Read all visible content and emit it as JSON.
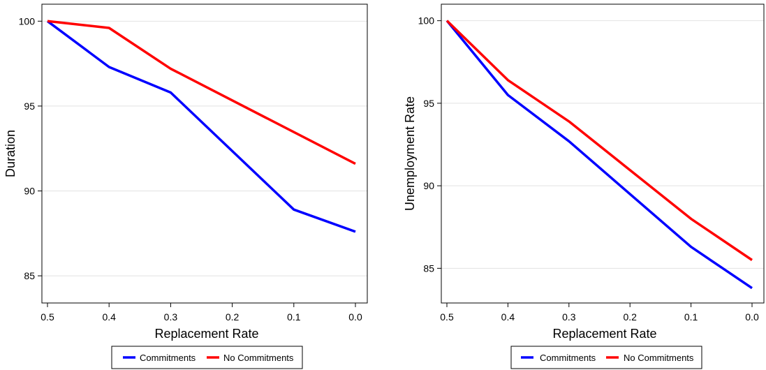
{
  "chart_data": [
    {
      "type": "line",
      "xlabel": "Replacement Rate",
      "ylabel": "Duration",
      "x": [
        0.5,
        0.4,
        0.3,
        0.2,
        0.1,
        0.0
      ],
      "x_tick_labels": [
        "0.5",
        "0.4",
        "0.3",
        "0.2",
        "0.1",
        "0.0"
      ],
      "x_reversed": true,
      "xlim": [
        0.5,
        0.0
      ],
      "ylim": [
        83.4,
        101.0
      ],
      "y_ticks": [
        85,
        90,
        95,
        100
      ],
      "y_tick_labels": [
        "85",
        "90",
        "95",
        "100"
      ],
      "grid": "horizontal",
      "legend_position": "bottom",
      "series": [
        {
          "name": "Commitments",
          "color": "#0000ff",
          "points": [
            [
              0.5,
              100.0
            ],
            [
              0.4,
              97.3
            ],
            [
              0.3,
              95.8
            ],
            [
              0.1,
              88.9
            ],
            [
              0.0,
              87.6
            ]
          ]
        },
        {
          "name": "No Commitments",
          "color": "#ff0000",
          "points": [
            [
              0.5,
              100.0
            ],
            [
              0.4,
              99.6
            ],
            [
              0.3,
              97.2
            ],
            [
              0.0,
              91.6
            ]
          ]
        }
      ]
    },
    {
      "type": "line",
      "xlabel": "Replacement Rate",
      "ylabel": "Unemployment Rate",
      "x": [
        0.5,
        0.4,
        0.3,
        0.2,
        0.1,
        0.0
      ],
      "x_tick_labels": [
        "0.5",
        "0.4",
        "0.3",
        "0.2",
        "0.1",
        "0.0"
      ],
      "x_reversed": true,
      "xlim": [
        0.5,
        0.0
      ],
      "ylim": [
        82.9,
        101.0
      ],
      "y_ticks": [
        85,
        90,
        95,
        100
      ],
      "y_tick_labels": [
        "85",
        "90",
        "95",
        "100"
      ],
      "grid": "horizontal",
      "legend_position": "bottom",
      "series": [
        {
          "name": "Commitments",
          "color": "#0000ff",
          "points": [
            [
              0.5,
              100.0
            ],
            [
              0.4,
              95.5
            ],
            [
              0.3,
              92.7
            ],
            [
              0.1,
              86.3
            ],
            [
              0.0,
              83.8
            ]
          ]
        },
        {
          "name": "No Commitments",
          "color": "#ff0000",
          "points": [
            [
              0.5,
              100.0
            ],
            [
              0.4,
              96.4
            ],
            [
              0.3,
              93.9
            ],
            [
              0.1,
              88.0
            ],
            [
              0.0,
              85.5
            ]
          ]
        }
      ]
    }
  ]
}
